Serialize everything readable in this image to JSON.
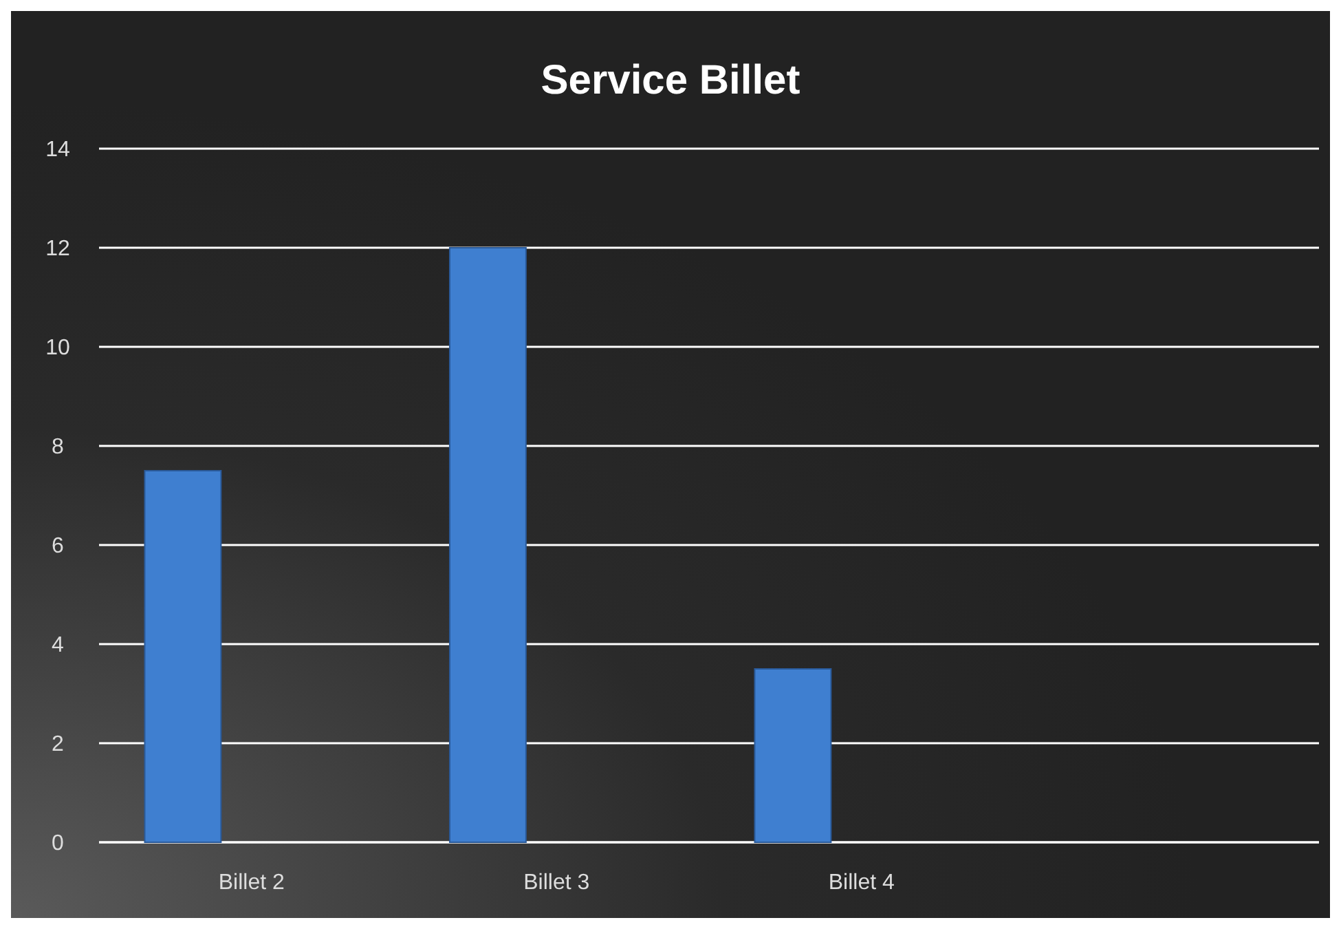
{
  "chart_data": {
    "type": "bar",
    "title": "Service Billet",
    "categories": [
      "Billet 2",
      "Billet 3",
      "Billet 4",
      null
    ],
    "series": [
      {
        "color": "#3f7fd0",
        "values": [
          7.5,
          12,
          3.5,
          null
        ]
      }
    ],
    "ylim": [
      0,
      14
    ],
    "yticks": [
      0,
      2,
      4,
      6,
      8,
      10,
      12,
      14
    ],
    "grid": "y"
  }
}
